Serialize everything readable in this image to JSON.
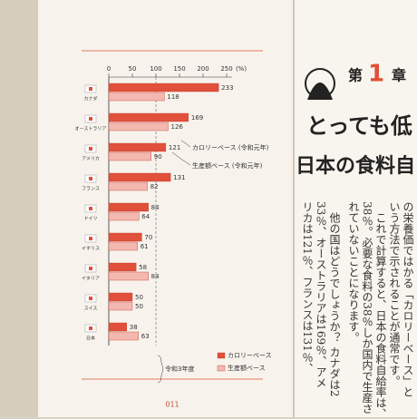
{
  "chart_data": {
    "type": "hbar",
    "xlabel": "(%)",
    "categories": [
      "カナダ",
      "オーストラリア",
      "アメリカ",
      "フランス",
      "ドイツ",
      "イギリス",
      "イタリア",
      "スイス",
      "日本"
    ],
    "series": [
      {
        "name": "カロリーベース",
        "color": "#e0503a",
        "values": [
          233,
          169,
          121,
          131,
          84,
          70,
          58,
          50,
          38
        ]
      },
      {
        "name": "生産額ベース",
        "color": "#f3b8b0",
        "values": [
          118,
          126,
          90,
          82,
          64,
          61,
          84,
          50,
          63
        ]
      }
    ],
    "xlim": [
      0,
      250
    ],
    "xticks": [
      0,
      50,
      100,
      150,
      200,
      250
    ],
    "reference_line": 100,
    "legend": "lower right",
    "annotations": [
      "カロリーベース (令和元年)",
      "生産額ベース (令和元年)",
      "令和3年度"
    ]
  },
  "page_number": "011",
  "chapter": {
    "prefix": "第",
    "number": "1",
    "suffix": "章"
  },
  "heading": [
    "とっても低",
    "日本の食料自"
  ],
  "body": [
    "の栄養価ではかる「カロリーベース」と",
    "いう方法で示されることが通常です。",
    "これで計算すると、日本の食料自給率は、",
    "38％。必要な食料の38％しか国内で生産さ",
    "れていないことになります。",
    "他の国はどうでしょうか？ カナダは2",
    "33％、オーストラリアは169％、アメ",
    "リカは121％、フランスは131％、"
  ]
}
